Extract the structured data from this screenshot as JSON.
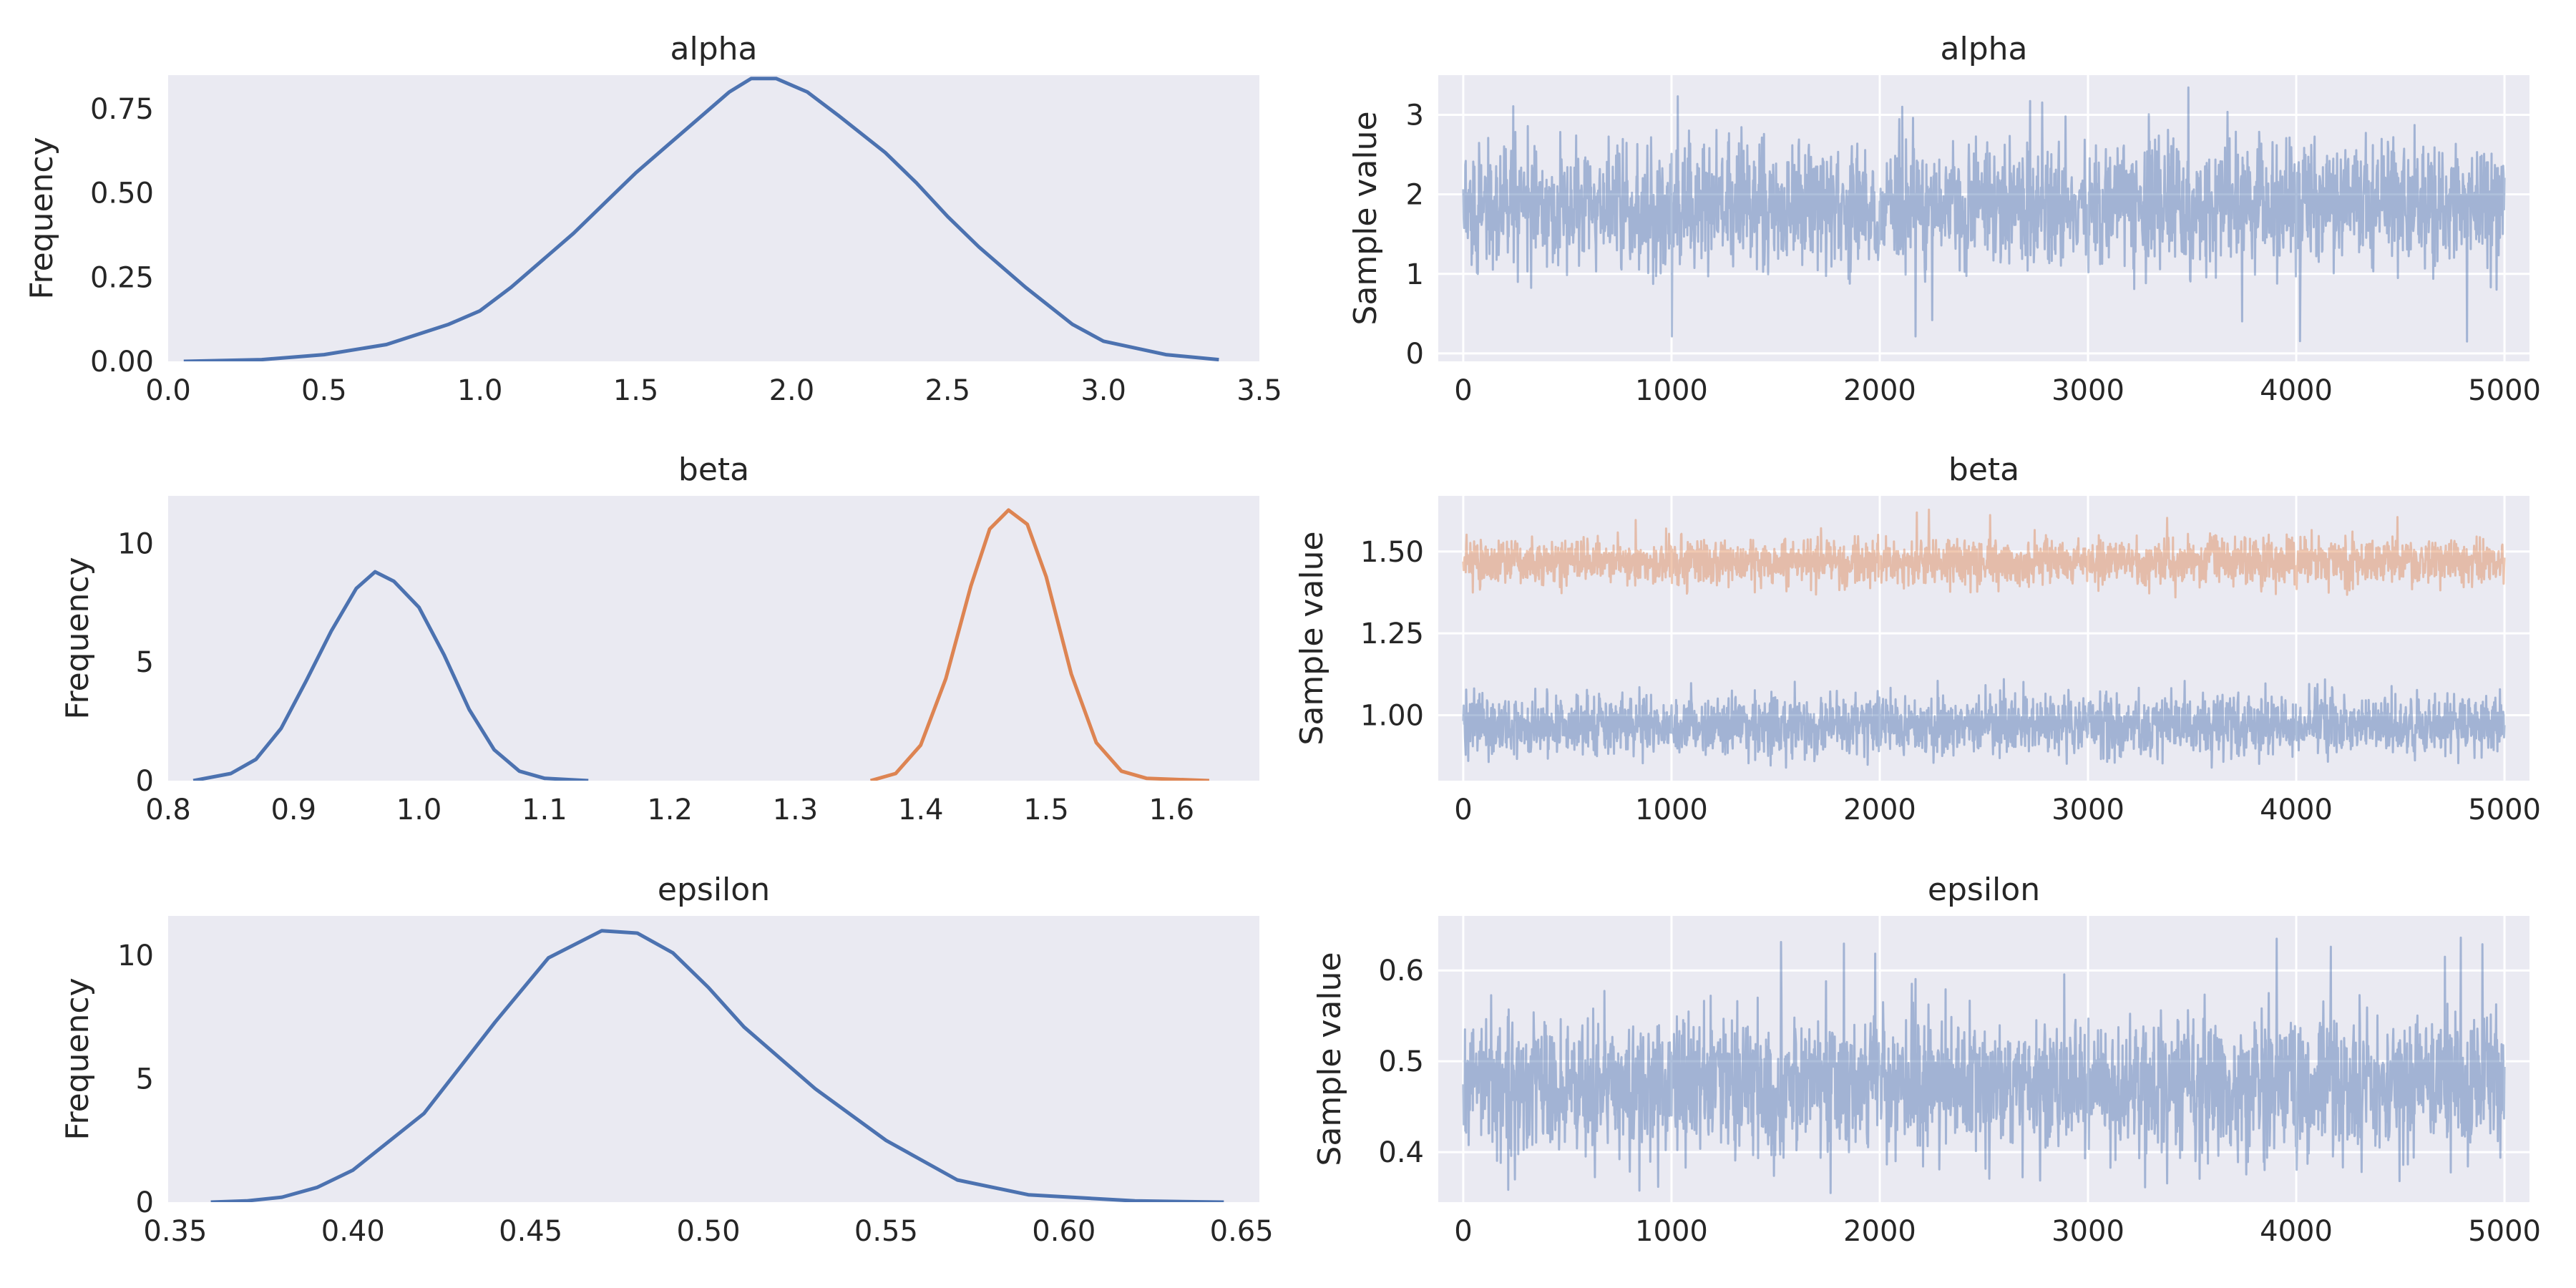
{
  "colors": {
    "series_0": "#4c72b0",
    "series_1": "#dd8452",
    "background": "#eaeaf2",
    "grid": "#ffffff"
  },
  "chart_data": [
    {
      "type": "line",
      "title": "alpha",
      "xlabel": "",
      "ylabel": "Frequency",
      "xlim": [
        0.0,
        3.5
      ],
      "ylim": [
        0,
        0.85
      ],
      "grid": false,
      "xticks": [
        0.0,
        0.5,
        1.0,
        1.5,
        2.0,
        2.5,
        3.0,
        3.5
      ],
      "xtick_labels": [
        "0.0",
        "0.5",
        "1.0",
        "1.5",
        "2.0",
        "2.5",
        "3.0",
        "3.5"
      ],
      "yticks": [
        0.0,
        0.25,
        0.5,
        0.75
      ],
      "ytick_labels": [
        "0.00",
        "0.25",
        "0.50",
        "0.75"
      ],
      "series": [
        {
          "x": [
            0.05,
            0.3,
            0.5,
            0.7,
            0.9,
            1.0,
            1.1,
            1.2,
            1.3,
            1.4,
            1.5,
            1.6,
            1.7,
            1.8,
            1.87,
            1.95,
            2.05,
            2.15,
            2.3,
            2.4,
            2.5,
            2.6,
            2.75,
            2.9,
            3.0,
            3.2,
            3.37
          ],
          "y": [
            0.0,
            0.005,
            0.02,
            0.05,
            0.11,
            0.15,
            0.22,
            0.3,
            0.38,
            0.47,
            0.56,
            0.64,
            0.72,
            0.8,
            0.84,
            0.84,
            0.8,
            0.73,
            0.62,
            0.53,
            0.43,
            0.34,
            0.22,
            0.11,
            0.06,
            0.02,
            0.005
          ]
        }
      ]
    },
    {
      "type": "line",
      "title": "alpha",
      "xlabel": "",
      "ylabel": "Sample value",
      "xlim": [
        -120,
        5120
      ],
      "ylim": [
        -0.1,
        3.5
      ],
      "grid": true,
      "xticks": [
        0,
        1000,
        2000,
        3000,
        4000,
        5000
      ],
      "xtick_labels": [
        "0",
        "1000",
        "2000",
        "3000",
        "4000",
        "5000"
      ],
      "yticks": [
        0,
        1,
        2,
        3
      ],
      "ytick_labels": [
        "0",
        "1",
        "2",
        "3"
      ],
      "series": [
        {
          "n": 5000,
          "center": 1.85,
          "noise": 0.38,
          "min": 0.05,
          "max": 3.35
        }
      ]
    },
    {
      "type": "line",
      "title": "beta",
      "xlabel": "",
      "ylabel": "Frequency",
      "xlim": [
        0.8,
        1.67
      ],
      "ylim": [
        0,
        12
      ],
      "grid": false,
      "xticks": [
        0.8,
        0.9,
        1.0,
        1.1,
        1.2,
        1.3,
        1.4,
        1.5,
        1.6
      ],
      "xtick_labels": [
        "0.8",
        "0.9",
        "1.0",
        "1.1",
        "1.2",
        "1.3",
        "1.4",
        "1.5",
        "1.6"
      ],
      "yticks": [
        0,
        5,
        10
      ],
      "ytick_labels": [
        "0",
        "5",
        "10"
      ],
      "series": [
        {
          "x": [
            0.82,
            0.85,
            0.87,
            0.89,
            0.91,
            0.93,
            0.95,
            0.965,
            0.98,
            1.0,
            1.02,
            1.04,
            1.06,
            1.08,
            1.1,
            1.135
          ],
          "y": [
            0.0,
            0.3,
            0.9,
            2.2,
            4.2,
            6.3,
            8.1,
            8.8,
            8.4,
            7.3,
            5.3,
            3.0,
            1.3,
            0.4,
            0.1,
            0.0
          ]
        },
        {
          "x": [
            1.36,
            1.38,
            1.4,
            1.42,
            1.44,
            1.455,
            1.47,
            1.485,
            1.5,
            1.52,
            1.54,
            1.56,
            1.58,
            1.63
          ],
          "y": [
            0.0,
            0.3,
            1.5,
            4.3,
            8.2,
            10.6,
            11.4,
            10.8,
            8.6,
            4.5,
            1.6,
            0.4,
            0.1,
            0.0
          ]
        }
      ]
    },
    {
      "type": "line",
      "title": "beta",
      "xlabel": "",
      "ylabel": "Sample value",
      "xlim": [
        -120,
        5120
      ],
      "ylim": [
        0.8,
        1.67
      ],
      "grid": true,
      "xticks": [
        0,
        1000,
        2000,
        3000,
        4000,
        5000
      ],
      "xtick_labels": [
        "0",
        "1000",
        "2000",
        "3000",
        "4000",
        "5000"
      ],
      "yticks": [
        1.0,
        1.25,
        1.5
      ],
      "ytick_labels": [
        "1.00",
        "1.25",
        "1.50"
      ],
      "series": [
        {
          "n": 5000,
          "center": 0.97,
          "noise": 0.045,
          "min": 0.84,
          "max": 1.13
        },
        {
          "n": 5000,
          "center": 1.47,
          "noise": 0.035,
          "min": 1.36,
          "max": 1.63
        }
      ]
    },
    {
      "type": "line",
      "title": "epsilon",
      "xlabel": "",
      "ylabel": "Frequency",
      "xlim": [
        0.348,
        0.655
      ],
      "ylim": [
        0,
        11.6
      ],
      "grid": false,
      "xticks": [
        0.35,
        0.4,
        0.45,
        0.5,
        0.55,
        0.6,
        0.65
      ],
      "xtick_labels": [
        "0.35",
        "0.40",
        "0.45",
        "0.50",
        "0.55",
        "0.60",
        "0.65"
      ],
      "yticks": [
        0,
        5,
        10
      ],
      "ytick_labels": [
        "0",
        "5",
        "10"
      ],
      "series": [
        {
          "x": [
            0.36,
            0.37,
            0.38,
            0.39,
            0.4,
            0.42,
            0.44,
            0.455,
            0.47,
            0.48,
            0.49,
            0.5,
            0.51,
            0.53,
            0.55,
            0.57,
            0.59,
            0.62,
            0.645
          ],
          "y": [
            0.0,
            0.05,
            0.2,
            0.6,
            1.3,
            3.6,
            7.3,
            9.9,
            11.0,
            10.9,
            10.1,
            8.7,
            7.1,
            4.6,
            2.5,
            0.9,
            0.3,
            0.05,
            0.0
          ]
        }
      ]
    },
    {
      "type": "line",
      "title": "epsilon",
      "xlabel": "",
      "ylabel": "Sample value",
      "xlim": [
        -120,
        5120
      ],
      "ylim": [
        0.345,
        0.66
      ],
      "grid": true,
      "xticks": [
        0,
        1000,
        2000,
        3000,
        4000,
        5000
      ],
      "xtick_labels": [
        "0",
        "1000",
        "2000",
        "3000",
        "4000",
        "5000"
      ],
      "yticks": [
        0.4,
        0.5,
        0.6
      ],
      "ytick_labels": [
        "0.4",
        "0.5",
        "0.6"
      ],
      "series": [
        {
          "n": 5000,
          "center": 0.475,
          "noise": 0.038,
          "min": 0.355,
          "max": 0.645
        }
      ]
    }
  ]
}
